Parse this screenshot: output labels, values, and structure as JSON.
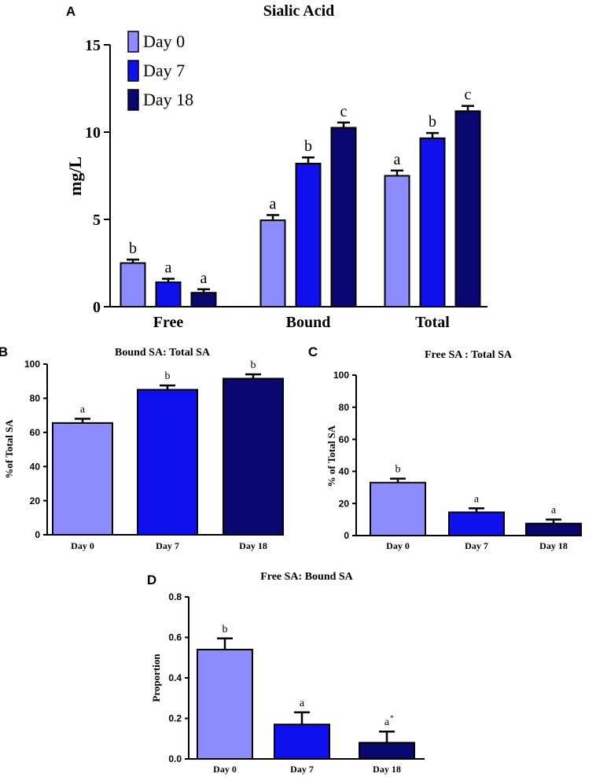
{
  "colors": {
    "day0": "#8c8cff",
    "day7": "#1010ee",
    "day18": "#080870",
    "stroke": "#000000"
  },
  "chart_data": [
    {
      "panel": "A",
      "type": "bar",
      "title": "Sialic Acid",
      "xlabel": "",
      "ylabel": "mg/L",
      "ylim": [
        0,
        15
      ],
      "yticks": [
        0,
        5,
        10,
        15
      ],
      "categories": [
        "Free",
        "Bound",
        "Total"
      ],
      "legend": {
        "placement": "top-left",
        "entries": [
          "Day 0",
          "Day 7",
          "Day 18"
        ]
      },
      "series": [
        {
          "name": "Day 0",
          "values": [
            2.5,
            4.95,
            7.5
          ],
          "errors": [
            0.2,
            0.3,
            0.3
          ],
          "letters": [
            "b",
            "a",
            "a"
          ]
        },
        {
          "name": "Day 7",
          "values": [
            1.4,
            8.2,
            9.65
          ],
          "errors": [
            0.2,
            0.35,
            0.3
          ],
          "letters": [
            "a",
            "b",
            "b"
          ]
        },
        {
          "name": "Day 18",
          "values": [
            0.8,
            10.25,
            11.2
          ],
          "errors": [
            0.2,
            0.3,
            0.3
          ],
          "letters": [
            "a",
            "c",
            "c"
          ]
        }
      ]
    },
    {
      "panel": "B",
      "type": "bar",
      "title": "Bound SA: Total SA",
      "xlabel": "",
      "ylabel": "%of Total SA",
      "ylim": [
        0,
        100
      ],
      "yticks": [
        0,
        20,
        40,
        60,
        80,
        100
      ],
      "categories": [
        "Day 0",
        "Day 7",
        "Day 18"
      ],
      "values": [
        65.5,
        85,
        91.5
      ],
      "errors": [
        2.5,
        2.5,
        2.5
      ],
      "letters": [
        "a",
        "b",
        "b"
      ]
    },
    {
      "panel": "C",
      "type": "bar",
      "title": "Free SA : Total SA",
      "xlabel": "",
      "ylabel": "% of Total SA",
      "ylim": [
        0,
        100
      ],
      "yticks": [
        0,
        20,
        40,
        60,
        80,
        100
      ],
      "categories": [
        "Day 0",
        "Day 7",
        "Day 18"
      ],
      "values": [
        33,
        14.5,
        7.5
      ],
      "errors": [
        2.5,
        2.5,
        2.5
      ],
      "letters": [
        "b",
        "a",
        "a"
      ]
    },
    {
      "panel": "D",
      "type": "bar",
      "title": "Free SA: Bound SA",
      "xlabel": "",
      "ylabel": "Proportion",
      "ylim": [
        0,
        0.8
      ],
      "yticks": [
        0.0,
        0.2,
        0.4,
        0.6,
        0.8
      ],
      "categories": [
        "Day 0",
        "Day 7",
        "Day 18"
      ],
      "values": [
        0.54,
        0.17,
        0.08
      ],
      "errors": [
        0.055,
        0.06,
        0.055
      ],
      "letters": [
        "b",
        "a",
        "a*"
      ]
    }
  ]
}
